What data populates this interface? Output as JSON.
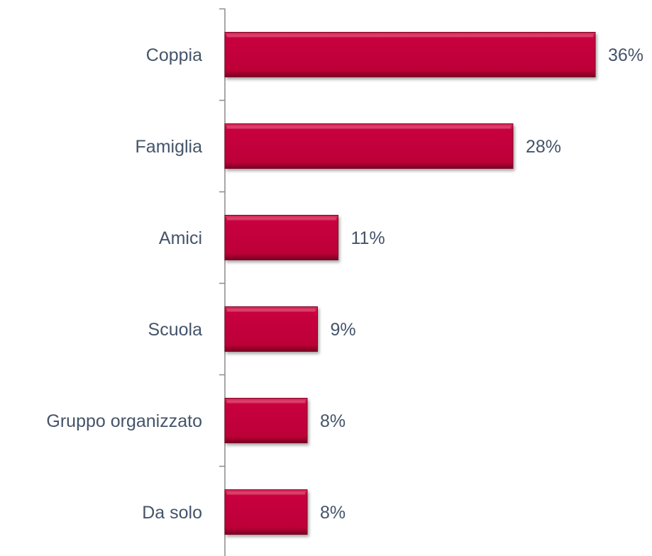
{
  "chart_data": {
    "type": "bar",
    "orientation": "horizontal",
    "categories": [
      "Coppia",
      "Famiglia",
      "Amici",
      "Scuola",
      "Gruppo organizzato",
      "Da solo"
    ],
    "values": [
      36,
      28,
      11,
      9,
      8,
      8
    ],
    "value_labels": [
      "36%",
      "28%",
      "11%",
      "9%",
      "8%",
      "8%"
    ],
    "unit": "%",
    "xlim": [
      0,
      36
    ],
    "grid": false,
    "legend": "none",
    "bar_color": "#c00039",
    "title": "",
    "xlabel": "",
    "ylabel": ""
  }
}
